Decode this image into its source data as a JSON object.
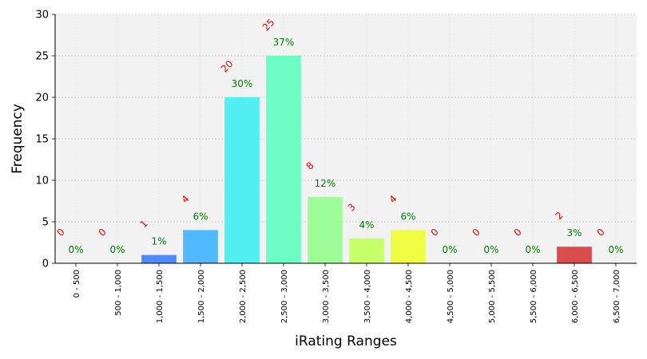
{
  "chart_data": {
    "type": "bar",
    "title": "",
    "xlabel": "iRating Ranges",
    "ylabel": "Frequency",
    "ylim": [
      0,
      30
    ],
    "yticks": [
      0,
      5,
      10,
      15,
      20,
      25,
      30
    ],
    "grid": true,
    "categories": [
      "0 - 500",
      "500 - 1,000",
      "1,000 - 1,500",
      "1,500 - 2,000",
      "2,000 - 2,500",
      "2,500 - 3,000",
      "3,000 - 3,500",
      "3,500 - 4,000",
      "4,000 - 4,500",
      "4,500 - 5,000",
      "5,000 - 5,500",
      "5,500 - 6,000",
      "6,000 - 6,500",
      "6,500 - 7,000"
    ],
    "values": [
      0,
      0,
      1,
      4,
      20,
      25,
      8,
      3,
      4,
      0,
      0,
      0,
      2,
      0
    ],
    "count_labels": [
      "0",
      "0",
      "1",
      "4",
      "20",
      "25",
      "8",
      "3",
      "4",
      "0",
      "0",
      "0",
      "2",
      "0"
    ],
    "percent_labels": [
      "0%",
      "0%",
      "1%",
      "6%",
      "30%",
      "37%",
      "12%",
      "4%",
      "6%",
      "0%",
      "0%",
      "0%",
      "3%",
      "0%"
    ],
    "colors": [
      "#3b3bff",
      "#3b5bff",
      "#3f7dff",
      "#3fb2ff",
      "#3feef0",
      "#5effc0",
      "#94ff8e",
      "#c2ff5c",
      "#eeff30",
      "#ffd020",
      "#ffa010",
      "#ff7010",
      "#d93a3a",
      "#c02020"
    ],
    "count_label_color": "#ff0000",
    "percent_label_color": "#008000",
    "plot_background": "#f2f2f2"
  }
}
